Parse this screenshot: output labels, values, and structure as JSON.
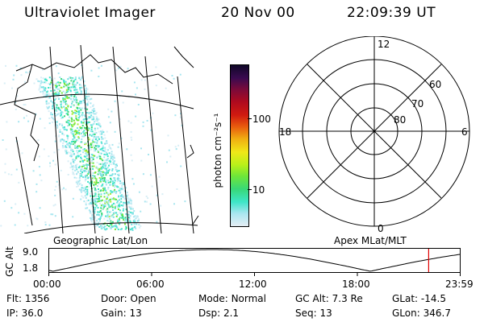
{
  "header": {
    "instrument": "Ultraviolet Imager",
    "date": "20 Nov 00",
    "time": "22:09:39 UT"
  },
  "colorbar": {
    "unit_label": "photon cm⁻²s⁻¹",
    "ticks": [
      {
        "label": "100",
        "value": 100
      },
      {
        "label": "10",
        "value": 10
      }
    ],
    "colors": [
      "#e6eef5",
      "#a8e6f0",
      "#3ee6c8",
      "#38d878",
      "#6ee63a",
      "#b8f01a",
      "#f0e818",
      "#f0b012",
      "#e85a0e",
      "#d01a10",
      "#b00a1e",
      "#7a0a3a",
      "#3a0a50",
      "#100828"
    ]
  },
  "geo_panel": {
    "caption": "Geographic Lat/Lon"
  },
  "polar_panel": {
    "caption": "Apex MLat/MLT",
    "mlt_labels": {
      "top": "12",
      "left": "18",
      "right": "6",
      "bottom": "0"
    },
    "lat_labels": [
      "60",
      "70",
      "80"
    ]
  },
  "altitude_plot": {
    "y_title": "GC Alt",
    "y_ticks": [
      "9.0",
      "1.8"
    ],
    "x_ticks": [
      "00:00",
      "06:00",
      "12:00",
      "18:00",
      "23:59"
    ],
    "current_time_hours": 22.16,
    "marker_color": "#e00000"
  },
  "status": {
    "rows": [
      [
        {
          "label": "Flt:",
          "value": "1356"
        },
        {
          "label": "Door:",
          "value": "Open"
        },
        {
          "label": "Mode:",
          "value": "Normal"
        },
        {
          "label": "GC Alt:",
          "value": "7.3 Re"
        },
        {
          "label": "GLat:",
          "value": "-14.5"
        }
      ],
      [
        {
          "label": "IP:",
          "value": "36.0"
        },
        {
          "label": "Gain:",
          "value": "13"
        },
        {
          "label": "Dsp:",
          "value": "2.1"
        },
        {
          "label": "Seq:",
          "value": "13"
        },
        {
          "label": "GLon:",
          "value": "346.7"
        }
      ]
    ]
  }
}
